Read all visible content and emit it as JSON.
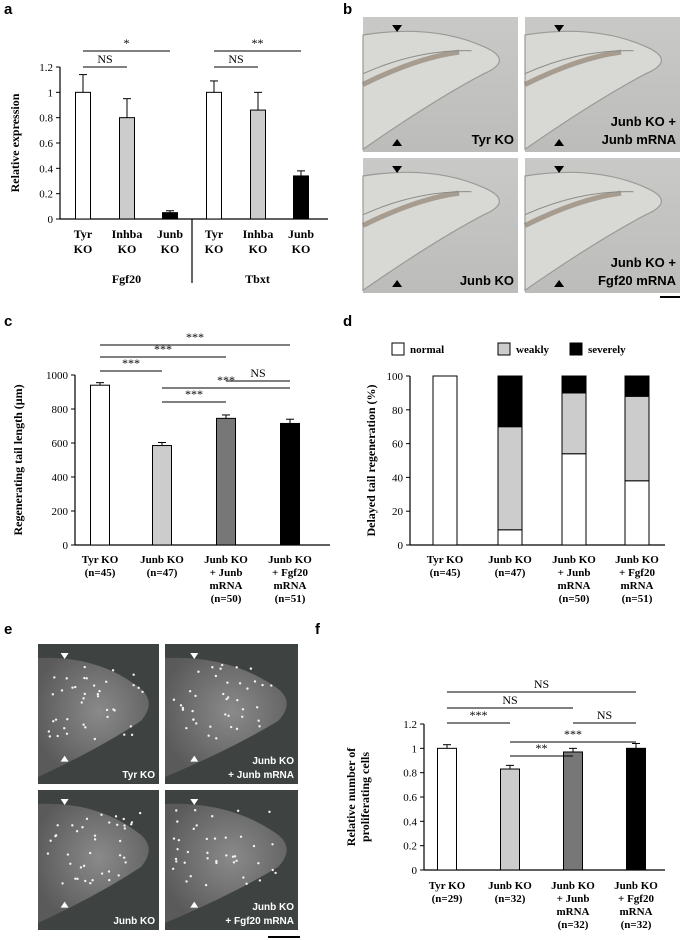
{
  "panels": {
    "a": "a",
    "b": "b",
    "c": "c",
    "d": "d",
    "e": "e",
    "f": "f"
  },
  "colors": {
    "white": "#ffffff",
    "lightgray": "#cccccc",
    "darkgray": "#777777",
    "black": "#000000"
  },
  "chart_data": [
    {
      "id": "a",
      "type": "bar",
      "ylabel": "Relative expression",
      "ylim": [
        0,
        1.2
      ],
      "yticks": [
        "0",
        "0.2",
        "0.4",
        "0.6",
        "0.8",
        "1",
        "1.2"
      ],
      "groups": [
        {
          "name": "Fgf20",
          "categories": [
            [
              "Tyr",
              "KO"
            ],
            [
              "Inhba",
              "KO"
            ],
            [
              "Junb",
              "KO"
            ]
          ],
          "values": [
            1.0,
            0.8,
            0.05
          ],
          "errors": [
            0.14,
            0.15,
            0.015
          ],
          "colors": [
            "white",
            "lightgray",
            "black"
          ],
          "significance": [
            {
              "from": 0,
              "to": 1,
              "label": "NS"
            },
            {
              "from": 0,
              "to": 2,
              "label": "*"
            }
          ]
        },
        {
          "name": "Tbxt",
          "categories": [
            [
              "Tyr",
              "KO"
            ],
            [
              "Inhba",
              "KO"
            ],
            [
              "Junb",
              "KO"
            ]
          ],
          "values": [
            1.0,
            0.86,
            0.34
          ],
          "errors": [
            0.09,
            0.14,
            0.04
          ],
          "colors": [
            "white",
            "lightgray",
            "black"
          ],
          "significance": [
            {
              "from": 0,
              "to": 1,
              "label": "NS"
            },
            {
              "from": 0,
              "to": 2,
              "label": "**"
            }
          ]
        }
      ]
    },
    {
      "id": "c",
      "type": "bar",
      "ylabel": "Regenerating tail length (μm)",
      "ylim": [
        0,
        1000
      ],
      "yticks": [
        "0",
        "200",
        "400",
        "600",
        "800",
        "1000"
      ],
      "categories": [
        [
          "Tyr KO",
          "(n=45)"
        ],
        [
          "Junb KO",
          "(n=47)"
        ],
        [
          "Junb KO",
          "+ Junb",
          "mRNA",
          "(n=50)"
        ],
        [
          "Junb KO",
          "+ Fgf20",
          "mRNA",
          "(n=51)"
        ]
      ],
      "values": [
        940,
        585,
        745,
        715
      ],
      "errors": [
        15,
        18,
        20,
        25
      ],
      "colors": [
        "white",
        "lightgray",
        "darkgray",
        "black"
      ],
      "significance": [
        {
          "from": 0,
          "to": 3,
          "label": "***",
          "level": 4
        },
        {
          "from": 0,
          "to": 2,
          "label": "***",
          "level": 3
        },
        {
          "from": 2,
          "to": 3,
          "label": "NS",
          "level": 2.4
        },
        {
          "from": 0,
          "to": 1,
          "label": "***",
          "level": 2
        },
        {
          "from": 1,
          "to": 3,
          "label": "***",
          "level": 1.4
        },
        {
          "from": 1,
          "to": 2,
          "label": "***",
          "level": 0.6
        }
      ]
    },
    {
      "id": "d",
      "type": "bar",
      "stacked": true,
      "ylabel": "Delayed tail regeneration (%)",
      "ylim": [
        0,
        100
      ],
      "yticks": [
        "0",
        "20",
        "40",
        "60",
        "80",
        "100"
      ],
      "legend": [
        "normal",
        "weakly",
        "severely"
      ],
      "legend_position": "top",
      "categories": [
        [
          "Tyr KO",
          "(n=45)"
        ],
        [
          "Junb KO",
          "(n=47)"
        ],
        [
          "Junb KO",
          "+ Junb",
          "mRNA",
          "(n=50)"
        ],
        [
          "Junb KO",
          "+ Fgf20",
          "mRNA",
          "(n=51)"
        ]
      ],
      "series": [
        {
          "name": "normal",
          "values": [
            100,
            9,
            54,
            38
          ],
          "color": "white"
        },
        {
          "name": "weakly",
          "values": [
            0,
            61,
            36,
            50
          ],
          "color": "lightgray"
        },
        {
          "name": "severely",
          "values": [
            0,
            30,
            10,
            12
          ],
          "color": "black"
        }
      ]
    },
    {
      "id": "f",
      "type": "bar",
      "ylabel": [
        "Relative number of",
        "proliferating cells"
      ],
      "ylim": [
        0,
        1.2
      ],
      "yticks": [
        "0",
        "0.2",
        "0.4",
        "0.6",
        "0.8",
        "1",
        "1.2"
      ],
      "categories": [
        [
          "Tyr KO",
          "(n=29)"
        ],
        [
          "Junb KO",
          "(n=32)"
        ],
        [
          "Junb KO",
          "+ Junb",
          "mRNA",
          "(n=32)"
        ],
        [
          "Junb KO",
          "+ Fgf20",
          "mRNA",
          "(n=32)"
        ]
      ],
      "values": [
        1.0,
        0.83,
        0.97,
        1.0
      ],
      "errors": [
        0.03,
        0.03,
        0.03,
        0.04
      ],
      "colors": [
        "white",
        "lightgray",
        "darkgray",
        "black"
      ],
      "significance": [
        {
          "from": 0,
          "to": 3,
          "label": "NS",
          "level": 4
        },
        {
          "from": 0,
          "to": 2,
          "label": "NS",
          "level": 3
        },
        {
          "from": 0,
          "to": 1,
          "label": "***",
          "level": 2
        },
        {
          "from": 2,
          "to": 3,
          "label": "NS",
          "level": 2
        },
        {
          "from": 1,
          "to": 3,
          "label": "***",
          "level": 1.3
        },
        {
          "from": 1,
          "to": 2,
          "label": "**",
          "level": 0.6
        }
      ]
    }
  ],
  "images_b": [
    {
      "label": [
        "Tyr KO"
      ]
    },
    {
      "label": [
        "Junb KO +",
        "Junb mRNA"
      ]
    },
    {
      "label": [
        "Junb KO"
      ]
    },
    {
      "label": [
        "Junb KO +",
        "Fgf20 mRNA"
      ]
    }
  ],
  "images_e": [
    {
      "label": [
        "Tyr KO"
      ]
    },
    {
      "label": [
        "Junb KO",
        "+ Junb mRNA"
      ]
    },
    {
      "label": [
        "Junb KO"
      ]
    },
    {
      "label": [
        "Junb KO",
        "+ Fgf20 mRNA"
      ]
    }
  ]
}
